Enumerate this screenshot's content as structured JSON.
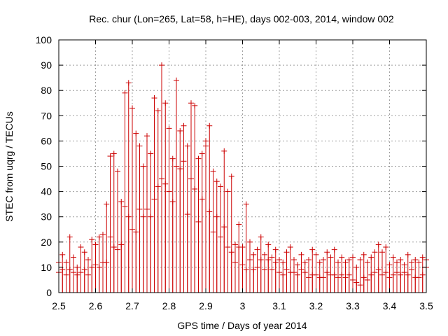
{
  "chart_data": {
    "type": "scatter",
    "title": "Rec. chur (Lon=265, Lat=58, h=HE), days 002-003, 2014, window 002",
    "xlabel": "GPS time / Days of year 2014",
    "ylabel": "STEC from uqrg / TECUs",
    "xlim": [
      2.5,
      3.5
    ],
    "ylim": [
      0,
      100
    ],
    "x_ticks": [
      "2.5",
      "2.6",
      "2.7",
      "2.8",
      "2.9",
      "3",
      "3.1",
      "3.2",
      "3.3",
      "3.4",
      "3.5"
    ],
    "y_ticks": [
      "0",
      "10",
      "20",
      "30",
      "40",
      "50",
      "60",
      "70",
      "80",
      "90",
      "100"
    ],
    "grid": true,
    "marker": "plus-with-vertical-error-bar",
    "color": "#cc0000",
    "points": [
      [
        2.5,
        12
      ],
      [
        2.5,
        8
      ],
      [
        2.51,
        15
      ],
      [
        2.51,
        9
      ],
      [
        2.52,
        12
      ],
      [
        2.52,
        7
      ],
      [
        2.53,
        22
      ],
      [
        2.53,
        9
      ],
      [
        2.54,
        14
      ],
      [
        2.54,
        8
      ],
      [
        2.55,
        10
      ],
      [
        2.55,
        7
      ],
      [
        2.56,
        18
      ],
      [
        2.56,
        8
      ],
      [
        2.57,
        16
      ],
      [
        2.57,
        9
      ],
      [
        2.58,
        13
      ],
      [
        2.58,
        7
      ],
      [
        2.59,
        21
      ],
      [
        2.59,
        10
      ],
      [
        2.6,
        19
      ],
      [
        2.6,
        11
      ],
      [
        2.61,
        22
      ],
      [
        2.61,
        10
      ],
      [
        2.62,
        23
      ],
      [
        2.62,
        12
      ],
      [
        2.63,
        35
      ],
      [
        2.63,
        12
      ],
      [
        2.64,
        54
      ],
      [
        2.64,
        22
      ],
      [
        2.65,
        55
      ],
      [
        2.65,
        18
      ],
      [
        2.66,
        48
      ],
      [
        2.66,
        17
      ],
      [
        2.67,
        36
      ],
      [
        2.67,
        19
      ],
      [
        2.68,
        79
      ],
      [
        2.68,
        34
      ],
      [
        2.69,
        83
      ],
      [
        2.69,
        30
      ],
      [
        2.7,
        73
      ],
      [
        2.7,
        25
      ],
      [
        2.71,
        63
      ],
      [
        2.71,
        24
      ],
      [
        2.72,
        58
      ],
      [
        2.72,
        33
      ],
      [
        2.73,
        50
      ],
      [
        2.73,
        30
      ],
      [
        2.74,
        62
      ],
      [
        2.74,
        33
      ],
      [
        2.75,
        55
      ],
      [
        2.75,
        30
      ],
      [
        2.76,
        77
      ],
      [
        2.76,
        37
      ],
      [
        2.77,
        72
      ],
      [
        2.77,
        42
      ],
      [
        2.78,
        90
      ],
      [
        2.78,
        45
      ],
      [
        2.79,
        75
      ],
      [
        2.79,
        43
      ],
      [
        2.8,
        65
      ],
      [
        2.8,
        40
      ],
      [
        2.81,
        53
      ],
      [
        2.81,
        36
      ],
      [
        2.82,
        84
      ],
      [
        2.82,
        50
      ],
      [
        2.83,
        64
      ],
      [
        2.83,
        49
      ],
      [
        2.84,
        66
      ],
      [
        2.84,
        52
      ],
      [
        2.85,
        58
      ],
      [
        2.85,
        31
      ],
      [
        2.86,
        75
      ],
      [
        2.86,
        45
      ],
      [
        2.87,
        74
      ],
      [
        2.87,
        41
      ],
      [
        2.88,
        53
      ],
      [
        2.88,
        28
      ],
      [
        2.89,
        55
      ],
      [
        2.89,
        37
      ],
      [
        2.9,
        60
      ],
      [
        2.9,
        58
      ],
      [
        2.91,
        66
      ],
      [
        2.91,
        32
      ],
      [
        2.92,
        48
      ],
      [
        2.92,
        24
      ],
      [
        2.93,
        44
      ],
      [
        2.93,
        30
      ],
      [
        2.94,
        42
      ],
      [
        2.94,
        22
      ],
      [
        2.95,
        56
      ],
      [
        2.95,
        26
      ],
      [
        2.96,
        40
      ],
      [
        2.96,
        18
      ],
      [
        2.97,
        46
      ],
      [
        2.97,
        16
      ],
      [
        2.98,
        19
      ],
      [
        2.98,
        12
      ],
      [
        2.99,
        27
      ],
      [
        2.99,
        18
      ],
      [
        3.0,
        18
      ],
      [
        3.0,
        11
      ],
      [
        3.01,
        35
      ],
      [
        3.01,
        9
      ],
      [
        3.02,
        20
      ],
      [
        3.02,
        13
      ],
      [
        3.03,
        15
      ],
      [
        3.03,
        9
      ],
      [
        3.04,
        17
      ],
      [
        3.04,
        10
      ],
      [
        3.05,
        22
      ],
      [
        3.05,
        13
      ],
      [
        3.06,
        15
      ],
      [
        3.06,
        9
      ],
      [
        3.07,
        19
      ],
      [
        3.07,
        13
      ],
      [
        3.08,
        14
      ],
      [
        3.08,
        9
      ],
      [
        3.09,
        17
      ],
      [
        3.09,
        12
      ],
      [
        3.1,
        13
      ],
      [
        3.1,
        8
      ],
      [
        3.11,
        12
      ],
      [
        3.11,
        7
      ],
      [
        3.12,
        16
      ],
      [
        3.12,
        9
      ],
      [
        3.13,
        18
      ],
      [
        3.13,
        8
      ],
      [
        3.14,
        13
      ],
      [
        3.14,
        8
      ],
      [
        3.15,
        11
      ],
      [
        3.15,
        7
      ],
      [
        3.16,
        15
      ],
      [
        3.16,
        9
      ],
      [
        3.17,
        12
      ],
      [
        3.17,
        8
      ],
      [
        3.18,
        13
      ],
      [
        3.18,
        6
      ],
      [
        3.19,
        17
      ],
      [
        3.19,
        7
      ],
      [
        3.2,
        15
      ],
      [
        3.2,
        7
      ],
      [
        3.21,
        12
      ],
      [
        3.21,
        6
      ],
      [
        3.22,
        13
      ],
      [
        3.22,
        6
      ],
      [
        3.23,
        16
      ],
      [
        3.23,
        8
      ],
      [
        3.24,
        14
      ],
      [
        3.24,
        7
      ],
      [
        3.25,
        17
      ],
      [
        3.25,
        7
      ],
      [
        3.26,
        12
      ],
      [
        3.26,
        6
      ],
      [
        3.27,
        14
      ],
      [
        3.27,
        7
      ],
      [
        3.28,
        12
      ],
      [
        3.28,
        6
      ],
      [
        3.29,
        13
      ],
      [
        3.29,
        7
      ],
      [
        3.3,
        14
      ],
      [
        3.3,
        5
      ],
      [
        3.31,
        10
      ],
      [
        3.31,
        4
      ],
      [
        3.32,
        13
      ],
      [
        3.32,
        3
      ],
      [
        3.33,
        15
      ],
      [
        3.33,
        6
      ],
      [
        3.34,
        12
      ],
      [
        3.34,
        5
      ],
      [
        3.35,
        14
      ],
      [
        3.35,
        7
      ],
      [
        3.36,
        16
      ],
      [
        3.36,
        8
      ],
      [
        3.37,
        19
      ],
      [
        3.37,
        9
      ],
      [
        3.38,
        16
      ],
      [
        3.38,
        7
      ],
      [
        3.39,
        18
      ],
      [
        3.39,
        8
      ],
      [
        3.4,
        11
      ],
      [
        3.4,
        6
      ],
      [
        3.41,
        14
      ],
      [
        3.41,
        7
      ],
      [
        3.42,
        12
      ],
      [
        3.42,
        8
      ],
      [
        3.43,
        13
      ],
      [
        3.43,
        7
      ],
      [
        3.44,
        11
      ],
      [
        3.44,
        8
      ],
      [
        3.45,
        15
      ],
      [
        3.45,
        7
      ],
      [
        3.46,
        12
      ],
      [
        3.46,
        9
      ],
      [
        3.47,
        13
      ],
      [
        3.47,
        6
      ],
      [
        3.48,
        12
      ],
      [
        3.48,
        6
      ],
      [
        3.49,
        14
      ],
      [
        3.49,
        7
      ],
      [
        3.5,
        13
      ],
      [
        3.5,
        10
      ]
    ]
  }
}
